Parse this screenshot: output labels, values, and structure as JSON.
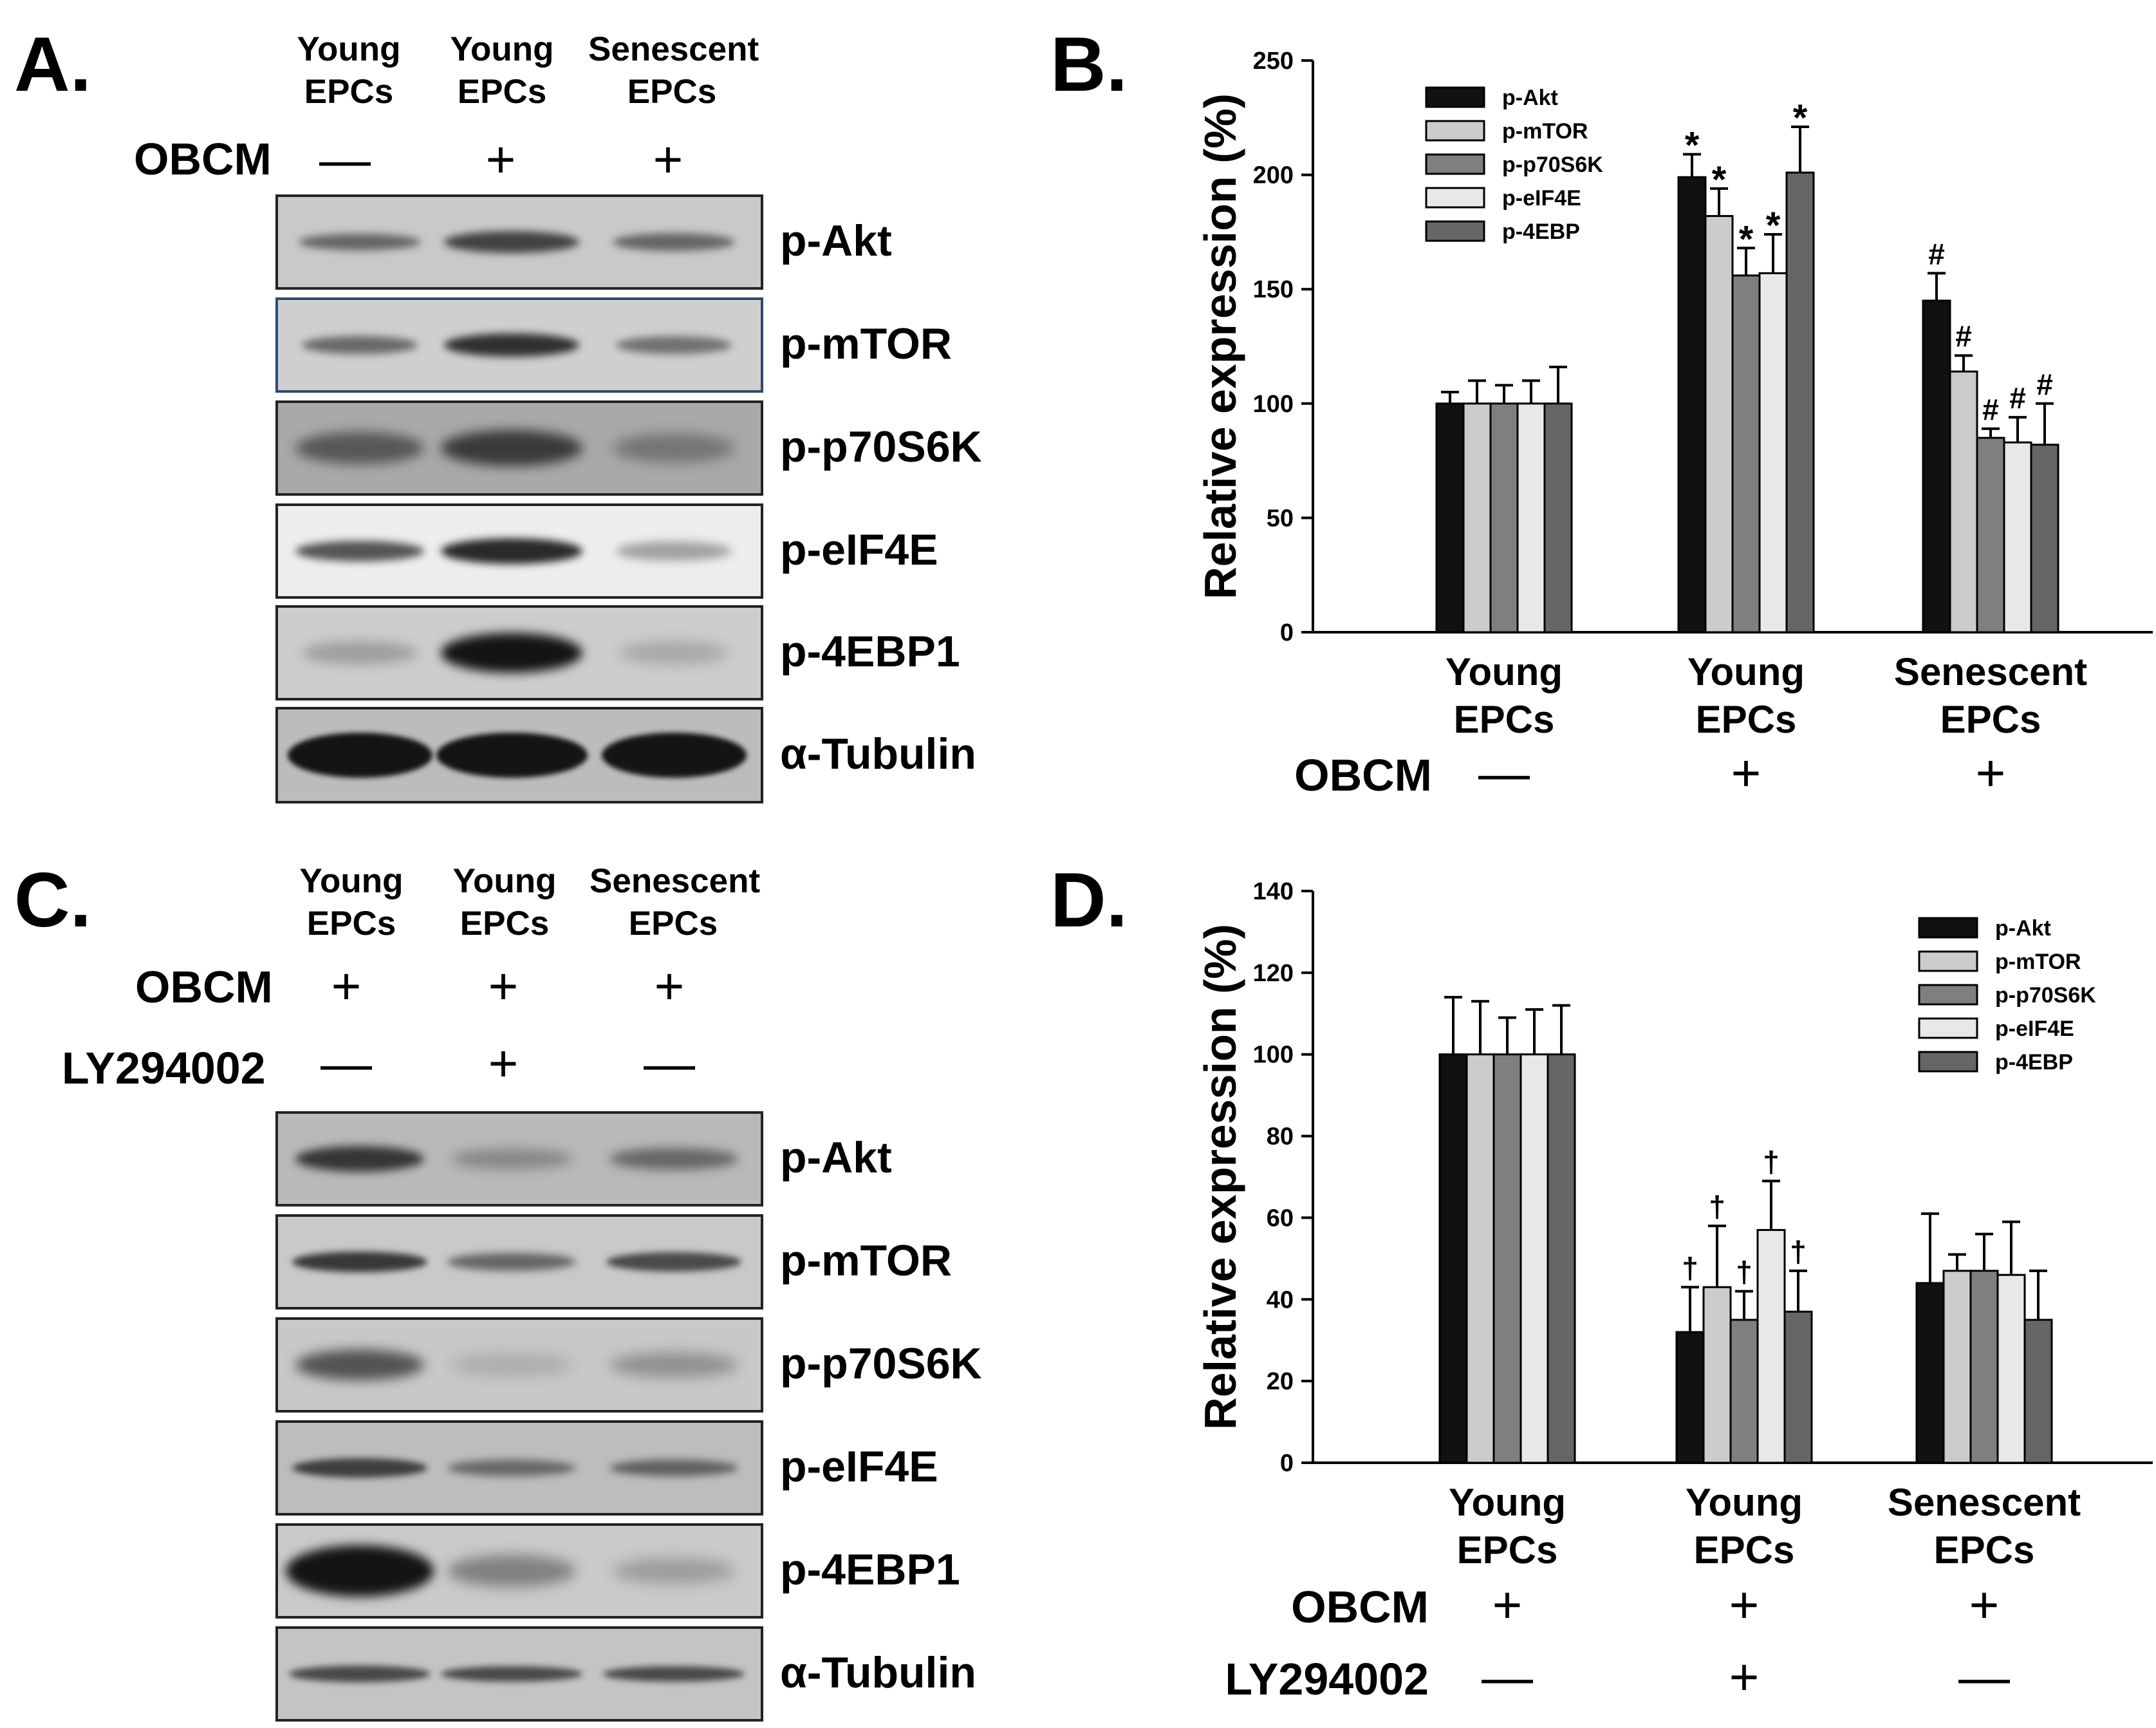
{
  "panel_labels": {
    "a": "A.",
    "b": "B.",
    "c": "C.",
    "d": "D."
  },
  "lanes": {
    "col1": [
      "Young",
      "EPCs"
    ],
    "col2": [
      "Young",
      "EPCs"
    ],
    "col3": [
      "Senescent",
      "EPCs"
    ]
  },
  "treatments": {
    "obcm": "OBCM",
    "ly": "LY294002"
  },
  "signs": {
    "plus": "+",
    "minus": "—"
  },
  "panelA": {
    "obcm_signs": [
      "—",
      "+",
      "+"
    ],
    "blots": [
      "p-Akt",
      "p-mTOR",
      "p-p70S6K",
      "p-eIF4E",
      "p-4EBP1",
      "α-Tubulin"
    ]
  },
  "panelC": {
    "obcm_signs": [
      "+",
      "+",
      "+"
    ],
    "ly_signs": [
      "—",
      "+",
      "—"
    ],
    "blots": [
      "p-Akt",
      "p-mTOR",
      "p-p70S6K",
      "p-eIF4E",
      "p-4EBP1",
      "α-Tubulin"
    ]
  },
  "chart_data": [
    {
      "panel": "B",
      "type": "bar",
      "ylabel": "Relative expression (%)",
      "ylim": [
        0,
        250
      ],
      "yticks": [
        0,
        50,
        100,
        150,
        200,
        250
      ],
      "categories": [
        [
          "Young",
          "EPCs"
        ],
        [
          "Young",
          "EPCs"
        ],
        [
          "Senescent",
          "EPCs"
        ]
      ],
      "treatment_rows": [
        {
          "label": "OBCM",
          "signs": [
            "—",
            "+",
            "+"
          ]
        }
      ],
      "legend_position": "top-left",
      "series": [
        {
          "name": "p-Akt",
          "color": "#111111",
          "values": [
            100,
            199,
            145
          ],
          "errors": [
            5,
            10,
            12
          ],
          "marks": [
            "",
            "*",
            "#"
          ]
        },
        {
          "name": "p-mTOR",
          "color": "#cccccc",
          "values": [
            100,
            182,
            114
          ],
          "errors": [
            10,
            12,
            7
          ],
          "marks": [
            "",
            "*",
            "#"
          ]
        },
        {
          "name": "p-p70S6K",
          "color": "#7f7f7f",
          "values": [
            100,
            156,
            85
          ],
          "errors": [
            8,
            12,
            4
          ],
          "marks": [
            "",
            "*",
            "#"
          ]
        },
        {
          "name": "p-eIF4E",
          "color": "#e8e8e8",
          "values": [
            100,
            157,
            83
          ],
          "errors": [
            10,
            17,
            11
          ],
          "marks": [
            "",
            "*",
            "#"
          ]
        },
        {
          "name": "p-4EBP",
          "color": "#666666",
          "values": [
            100,
            201,
            82
          ],
          "errors": [
            16,
            20,
            18
          ],
          "marks": [
            "",
            "*",
            "#"
          ]
        }
      ]
    },
    {
      "panel": "D",
      "type": "bar",
      "ylabel": "Relative expression (%)",
      "ylim": [
        0,
        140
      ],
      "yticks": [
        0,
        20,
        40,
        60,
        80,
        100,
        120,
        140
      ],
      "categories": [
        [
          "Young",
          "EPCs"
        ],
        [
          "Young",
          "EPCs"
        ],
        [
          "Senescent",
          "EPCs"
        ]
      ],
      "treatment_rows": [
        {
          "label": "OBCM",
          "signs": [
            "+",
            "+",
            "+"
          ]
        },
        {
          "label": "LY294002",
          "signs": [
            "—",
            "+",
            "—"
          ]
        }
      ],
      "legend_position": "top-right",
      "series": [
        {
          "name": "p-Akt",
          "color": "#111111",
          "values": [
            100,
            32,
            44
          ],
          "errors": [
            14,
            11,
            17
          ],
          "marks": [
            "",
            "†",
            ""
          ]
        },
        {
          "name": "p-mTOR",
          "color": "#cccccc",
          "values": [
            100,
            43,
            47
          ],
          "errors": [
            13,
            15,
            4
          ],
          "marks": [
            "",
            "†",
            ""
          ]
        },
        {
          "name": "p-p70S6K",
          "color": "#7f7f7f",
          "values": [
            100,
            35,
            47
          ],
          "errors": [
            9,
            7,
            9
          ],
          "marks": [
            "",
            "†",
            ""
          ]
        },
        {
          "name": "p-eIF4E",
          "color": "#e8e8e8",
          "values": [
            100,
            57,
            46
          ],
          "errors": [
            11,
            12,
            13
          ],
          "marks": [
            "",
            "†",
            ""
          ]
        },
        {
          "name": "p-4EBP",
          "color": "#666666",
          "values": [
            100,
            37,
            35
          ],
          "errors": [
            12,
            10,
            12
          ],
          "marks": [
            "",
            "†",
            ""
          ]
        }
      ]
    }
  ]
}
